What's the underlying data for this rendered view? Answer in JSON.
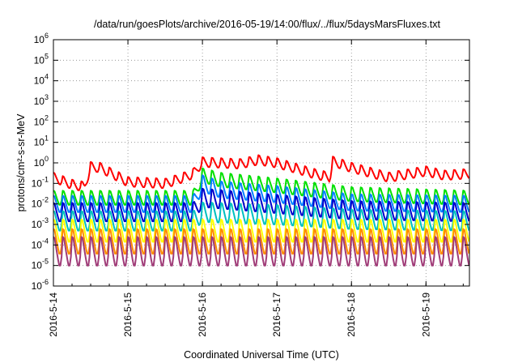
{
  "chart_data": {
    "type": "line",
    "title": "/data/run/goesPlots/archive/2016-05-19/14:00/flux/../flux/5daysMarsFluxes.txt",
    "xlabel": "Coordinated Universal Time (UTC)",
    "ylabel": "protons/cm²-s-sr-MeV",
    "y_scale": "log",
    "ylim": [
      1e-06,
      1000000.0
    ],
    "xlim": [
      "2016-05-14 00:00",
      "2016-05-19 14:00"
    ],
    "x_tick_labels": [
      "2016-5-14",
      "2016-5-15",
      "2016-5-16",
      "2016-5-17",
      "2016-5-18",
      "2016-5-19"
    ],
    "y_tick_exponents": [
      -6,
      -5,
      -4,
      -3,
      -2,
      -1,
      0,
      1,
      2,
      3,
      4,
      5,
      6
    ],
    "y_tick_base": "10",
    "grid": true,
    "legend": "none",
    "sawtooth_period_hours": 3,
    "series": [
      {
        "color": "#ff0000",
        "trend": [
          [
            "2016-05-14 00:00",
            0.2
          ],
          [
            "2016-05-14 06:00",
            0.09
          ],
          [
            "2016-05-14 10:00",
            0.07
          ],
          [
            "2016-05-14 12:00",
            0.65
          ],
          [
            "2016-05-14 15:00",
            0.6
          ],
          [
            "2016-05-14 20:00",
            0.25
          ],
          [
            "2016-05-15 00:00",
            0.12
          ],
          [
            "2016-05-15 12:00",
            0.1
          ],
          [
            "2016-05-15 18:00",
            0.2
          ],
          [
            "2016-05-15 21:00",
            0.3
          ],
          [
            "2016-05-16 00:00",
            1.1
          ],
          [
            "2016-05-16 12:00",
            0.9
          ],
          [
            "2016-05-16 18:00",
            1.4
          ],
          [
            "2016-05-17 00:00",
            1.0
          ],
          [
            "2016-05-17 12:00",
            0.3
          ],
          [
            "2016-05-17 17:00",
            0.2
          ],
          [
            "2016-05-17 18:00",
            1.2
          ],
          [
            "2016-05-18 00:00",
            0.6
          ],
          [
            "2016-05-18 12:00",
            0.2
          ],
          [
            "2016-05-19 00:00",
            0.4
          ],
          [
            "2016-05-19 06:00",
            0.25
          ],
          [
            "2016-05-19 14:00",
            0.3
          ]
        ],
        "amplitude": 1.7
      },
      {
        "color": "#00e000",
        "trend": [
          [
            "2016-05-14 00:00",
            0.02
          ],
          [
            "2016-05-15 21:00",
            0.02
          ],
          [
            "2016-05-16 00:00",
            0.25
          ],
          [
            "2016-05-16 06:00",
            0.15
          ],
          [
            "2016-05-17 00:00",
            0.08
          ],
          [
            "2016-05-18 00:00",
            0.03
          ],
          [
            "2016-05-19 14:00",
            0.02
          ]
        ],
        "amplitude": 2.2
      },
      {
        "color": "#0080ff",
        "trend": [
          [
            "2016-05-14 00:00",
            0.01
          ],
          [
            "2016-05-15 21:00",
            0.01
          ],
          [
            "2016-05-16 00:00",
            0.1
          ],
          [
            "2016-05-16 06:00",
            0.05
          ],
          [
            "2016-05-17 00:00",
            0.03
          ],
          [
            "2016-05-18 00:00",
            0.012
          ],
          [
            "2016-05-19 14:00",
            0.01
          ]
        ],
        "amplitude": 2.5
      },
      {
        "color": "#0000cc",
        "trend": [
          [
            "2016-05-14 00:00",
            0.004
          ],
          [
            "2016-05-15 21:00",
            0.004
          ],
          [
            "2016-05-16 00:00",
            0.02
          ],
          [
            "2016-05-17 00:00",
            0.01
          ],
          [
            "2016-05-18 00:00",
            0.005
          ],
          [
            "2016-05-19 14:00",
            0.004
          ]
        ],
        "amplitude": 2.8
      },
      {
        "color": "#00c0c0",
        "trend": [
          [
            "2016-05-14 00:00",
            0.0015
          ],
          [
            "2016-05-15 21:00",
            0.0015
          ],
          [
            "2016-05-16 00:00",
            0.004
          ],
          [
            "2016-05-17 00:00",
            0.003
          ],
          [
            "2016-05-18 00:00",
            0.0018
          ],
          [
            "2016-05-19 14:00",
            0.0015
          ]
        ],
        "amplitude": 3.0
      },
      {
        "color": "#ffff00",
        "trend": [
          [
            "2016-05-14 00:00",
            0.0005
          ],
          [
            "2016-05-19 14:00",
            0.0005
          ]
        ],
        "amplitude": 3.5
      },
      {
        "color": "#ff8c00",
        "trend": [
          [
            "2016-05-14 00:00",
            0.00015
          ],
          [
            "2016-05-19 14:00",
            0.00015
          ]
        ],
        "amplitude": 4.0
      },
      {
        "color": "#a03c78",
        "trend": [
          [
            "2016-05-14 00:00",
            5e-05
          ],
          [
            "2016-05-19 14:00",
            5e-05
          ]
        ],
        "amplitude": 5.0
      }
    ]
  }
}
